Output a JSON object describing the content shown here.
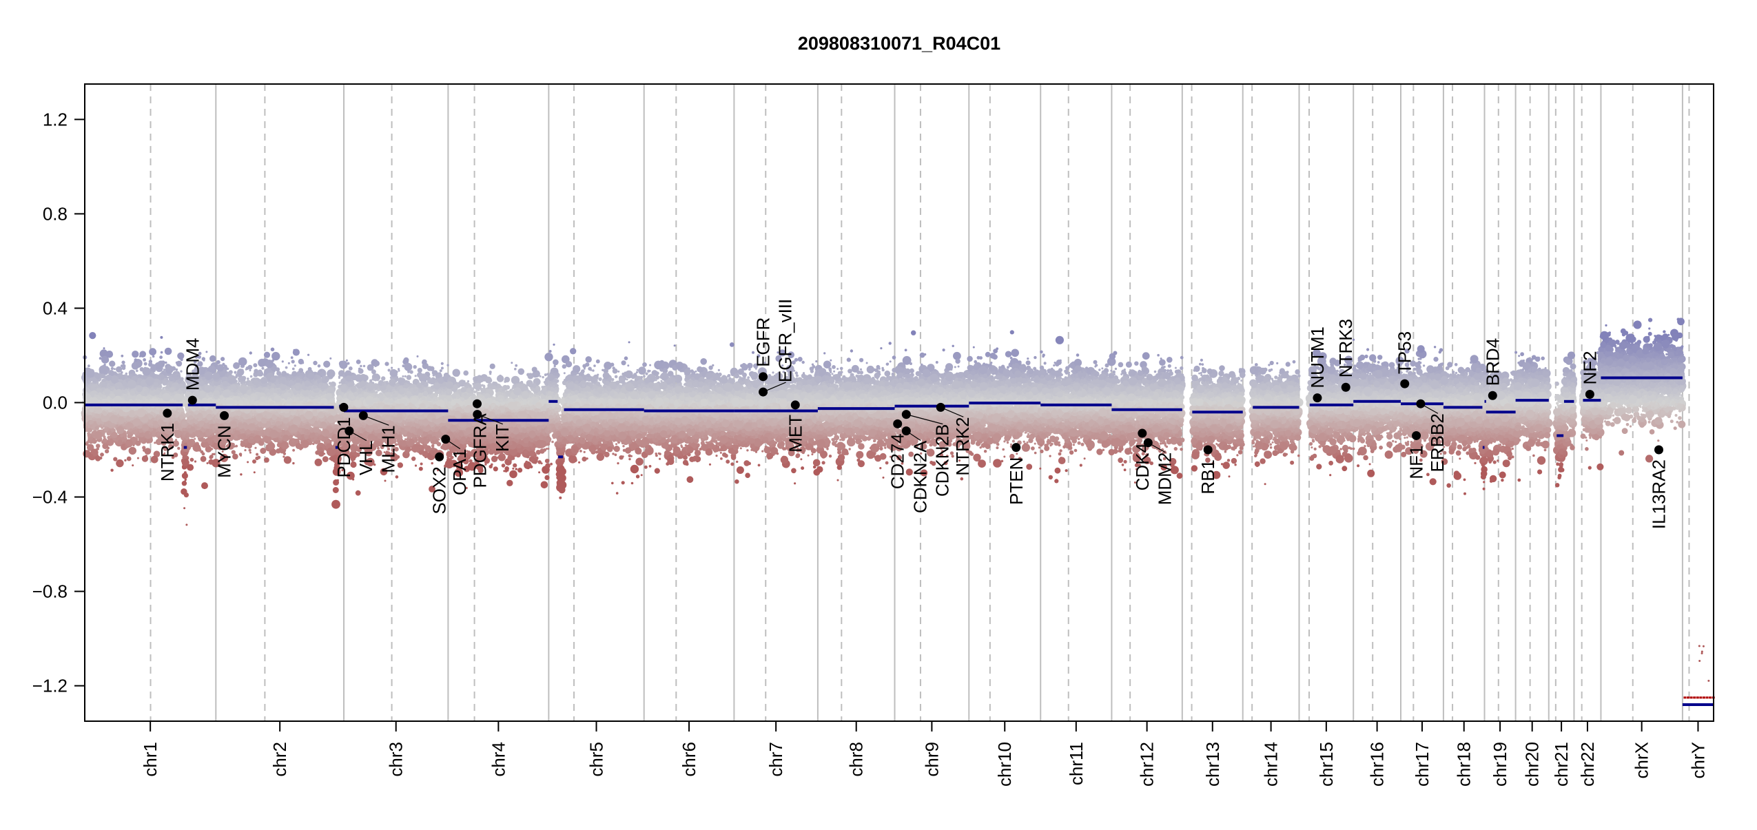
{
  "chart_data": {
    "type": "scatter",
    "title": "209808310071_R04C01",
    "xlabel": "",
    "ylabel": "",
    "ylim": [
      -1.35,
      1.35
    ],
    "yticks": [
      1.2,
      0.8,
      0.4,
      0.0,
      -0.4,
      -0.8,
      -1.2
    ],
    "ytick_labels": [
      "1.2",
      "0.8",
      "0.4",
      "0.0",
      "−0.4",
      "−0.8",
      "−1.2"
    ],
    "grid": false,
    "colors": {
      "segment": "#00008b",
      "high": "#8282b9",
      "neutral": "#d2d2d2",
      "low": "#af5a5a",
      "gene_point": "#000000",
      "chr_line": "#bebebe",
      "chrY_marker": "#b00000"
    },
    "chromosomes": [
      {
        "name": "chr1",
        "length_mb": 249,
        "centromere_mb": 125
      },
      {
        "name": "chr2",
        "length_mb": 243,
        "centromere_mb": 93
      },
      {
        "name": "chr3",
        "length_mb": 198,
        "centromere_mb": 91
      },
      {
        "name": "chr4",
        "length_mb": 191,
        "centromere_mb": 50
      },
      {
        "name": "chr5",
        "length_mb": 181,
        "centromere_mb": 48
      },
      {
        "name": "chr6",
        "length_mb": 171,
        "centromere_mb": 61
      },
      {
        "name": "chr7",
        "length_mb": 159,
        "centromere_mb": 60
      },
      {
        "name": "chr8",
        "length_mb": 146,
        "centromere_mb": 45
      },
      {
        "name": "chr9",
        "length_mb": 141,
        "centromere_mb": 49
      },
      {
        "name": "chr10",
        "length_mb": 136,
        "centromere_mb": 40
      },
      {
        "name": "chr11",
        "length_mb": 135,
        "centromere_mb": 53
      },
      {
        "name": "chr12",
        "length_mb": 134,
        "centromere_mb": 35
      },
      {
        "name": "chr13",
        "length_mb": 115,
        "centromere_mb": 18
      },
      {
        "name": "chr14",
        "length_mb": 107,
        "centromere_mb": 17.6
      },
      {
        "name": "chr15",
        "length_mb": 103,
        "centromere_mb": 19
      },
      {
        "name": "chr16",
        "length_mb": 90,
        "centromere_mb": 36.6
      },
      {
        "name": "chr17",
        "length_mb": 81,
        "centromere_mb": 24
      },
      {
        "name": "chr18",
        "length_mb": 78,
        "centromere_mb": 17.2
      },
      {
        "name": "chr19",
        "length_mb": 59,
        "centromere_mb": 26.5
      },
      {
        "name": "chr20",
        "length_mb": 63,
        "centromere_mb": 27.5
      },
      {
        "name": "chr21",
        "length_mb": 48,
        "centromere_mb": 13.2
      },
      {
        "name": "chr22",
        "length_mb": 51,
        "centromere_mb": 14.7
      },
      {
        "name": "chrX",
        "length_mb": 155,
        "centromere_mb": 60.6
      },
      {
        "name": "chrY",
        "length_mb": 59,
        "centromere_mb": 12.5
      }
    ],
    "segments": [
      {
        "chr": "chr1",
        "start": 0,
        "end": 186,
        "value": -0.01
      },
      {
        "chr": "chr1",
        "start": 188,
        "end": 194,
        "value": -0.19
      },
      {
        "chr": "chr1",
        "start": 196,
        "end": 249,
        "value": -0.01
      },
      {
        "chr": "chr2",
        "start": 0,
        "end": 224,
        "value": -0.02
      },
      {
        "chr": "chr2",
        "start": 227,
        "end": 232,
        "value": -0.19
      },
      {
        "chr": "chr2",
        "start": 234,
        "end": 243,
        "value": -0.015
      },
      {
        "chr": "chr3",
        "start": 0,
        "end": 198,
        "value": -0.035
      },
      {
        "chr": "chr4",
        "start": 0,
        "end": 191,
        "value": -0.075
      },
      {
        "chr": "chr5",
        "start": 0,
        "end": 17,
        "value": 0.005
      },
      {
        "chr": "chr5",
        "start": 18,
        "end": 27,
        "value": -0.23
      },
      {
        "chr": "chr5",
        "start": 29,
        "end": 181,
        "value": -0.03
      },
      {
        "chr": "chr6",
        "start": 0,
        "end": 171,
        "value": -0.035
      },
      {
        "chr": "chr7",
        "start": 0,
        "end": 159,
        "value": -0.035
      },
      {
        "chr": "chr8",
        "start": 0,
        "end": 146,
        "value": -0.025
      },
      {
        "chr": "chr9",
        "start": 0,
        "end": 141,
        "value": -0.015
      },
      {
        "chr": "chr10",
        "start": 0,
        "end": 136,
        "value": -0.002
      },
      {
        "chr": "chr11",
        "start": 0,
        "end": 135,
        "value": -0.01
      },
      {
        "chr": "chr12",
        "start": 0,
        "end": 134,
        "value": -0.03
      },
      {
        "chr": "chr13",
        "start": 19,
        "end": 115,
        "value": -0.04
      },
      {
        "chr": "chr14",
        "start": 19,
        "end": 107,
        "value": -0.02
      },
      {
        "chr": "chr15",
        "start": 20,
        "end": 103,
        "value": -0.01
      },
      {
        "chr": "chr16",
        "start": 0,
        "end": 90,
        "value": 0.005
      },
      {
        "chr": "chr17",
        "start": 0,
        "end": 81,
        "value": -0.005
      },
      {
        "chr": "chr18",
        "start": 0,
        "end": 74,
        "value": -0.02
      },
      {
        "chr": "chr18",
        "start": 74.5,
        "end": 78,
        "value": -0.19
      },
      {
        "chr": "chr19",
        "start": 0,
        "end": 3,
        "value": 0.005
      },
      {
        "chr": "chr19",
        "start": 3,
        "end": 59,
        "value": -0.04
      },
      {
        "chr": "chr20",
        "start": 0,
        "end": 63,
        "value": 0.01
      },
      {
        "chr": "chr21",
        "start": 15,
        "end": 28,
        "value": -0.14
      },
      {
        "chr": "chr21",
        "start": 29,
        "end": 48,
        "value": 0.005
      },
      {
        "chr": "chr22",
        "start": 17,
        "end": 51,
        "value": 0.01
      },
      {
        "chr": "chrX",
        "start": 0,
        "end": 155,
        "value": 0.105
      },
      {
        "chr": "chrY",
        "start": 0,
        "end": 59,
        "value": -1.28
      }
    ],
    "chrY_low_markers": {
      "chr": "chrY",
      "start": 0,
      "end": 59,
      "value": -1.25
    },
    "genes": [
      {
        "name": "NTRK1",
        "chr": "chr1",
        "pos": 156.8,
        "value": -0.045
      },
      {
        "name": "MDM4",
        "chr": "chr1",
        "pos": 204.5,
        "value": 0.01
      },
      {
        "name": "MYCN",
        "chr": "chr2",
        "pos": 16.0,
        "value": -0.055
      },
      {
        "name": "PDCD1",
        "chr": "chr2",
        "pos": 242.8,
        "value": -0.02
      },
      {
        "name": "VHL",
        "chr": "chr3",
        "pos": 10.2,
        "value": -0.12
      },
      {
        "name": "MLH1",
        "chr": "chr3",
        "pos": 37.0,
        "value": -0.055
      },
      {
        "name": "SOX2",
        "chr": "chr3",
        "pos": 181.4,
        "value": -0.23
      },
      {
        "name": "OPA1",
        "chr": "chr3",
        "pos": 193.3,
        "value": -0.155
      },
      {
        "name": "PDGFRA",
        "chr": "chr4",
        "pos": 55.1,
        "value": -0.005
      },
      {
        "name": "KIT",
        "chr": "chr4",
        "pos": 55.5,
        "value": -0.05
      },
      {
        "name": "EGFR",
        "chr": "chr7",
        "pos": 55.2,
        "value": 0.11
      },
      {
        "name": "EGFR_vIII",
        "chr": "chr7",
        "pos": 55.2,
        "value": 0.045
      },
      {
        "name": "MET",
        "chr": "chr7",
        "pos": 116.3,
        "value": -0.01
      },
      {
        "name": "CD274",
        "chr": "chr9",
        "pos": 5.5,
        "value": -0.09
      },
      {
        "name": "CDKN2A",
        "chr": "chr9",
        "pos": 21.97,
        "value": -0.12
      },
      {
        "name": "CDKN2B",
        "chr": "chr9",
        "pos": 22.0,
        "value": -0.05
      },
      {
        "name": "NTRK2",
        "chr": "chr9",
        "pos": 87.3,
        "value": -0.02
      },
      {
        "name": "PTEN",
        "chr": "chr10",
        "pos": 89.6,
        "value": -0.19
      },
      {
        "name": "CDK4",
        "chr": "chr12",
        "pos": 58.1,
        "value": -0.13
      },
      {
        "name": "MDM2",
        "chr": "chr12",
        "pos": 69.2,
        "value": -0.17
      },
      {
        "name": "RB1",
        "chr": "chr13",
        "pos": 48.9,
        "value": -0.2
      },
      {
        "name": "NUTM1",
        "chr": "chr15",
        "pos": 34.6,
        "value": 0.02
      },
      {
        "name": "NTRK3",
        "chr": "chr15",
        "pos": 88.6,
        "value": 0.065
      },
      {
        "name": "TP53",
        "chr": "chr17",
        "pos": 7.5,
        "value": 0.08
      },
      {
        "name": "NF1",
        "chr": "chr17",
        "pos": 29.5,
        "value": -0.14
      },
      {
        "name": "ERBB2",
        "chr": "chr17",
        "pos": 37.8,
        "value": -0.005
      },
      {
        "name": "BRD4",
        "chr": "chr19",
        "pos": 15.4,
        "value": 0.03
      },
      {
        "name": "NF2",
        "chr": "chr22",
        "pos": 30.0,
        "value": 0.035
      },
      {
        "name": "IL13RA2",
        "chr": "chrX",
        "pos": 110.0,
        "value": -0.2
      }
    ],
    "bins": {
      "description_note": "",
      "sd": 0.075,
      "density_per_mb": 1.1
    }
  }
}
